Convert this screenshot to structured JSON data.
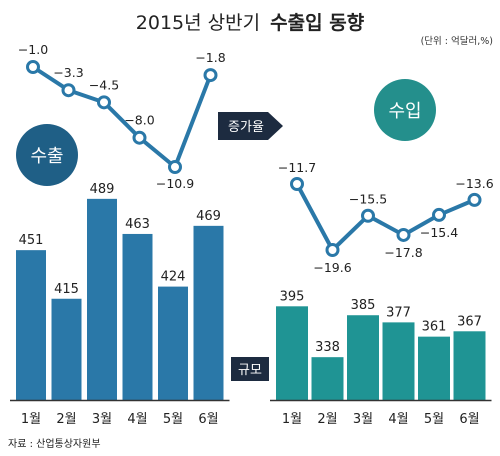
{
  "header": {
    "title_prefix": "2015년 상반기",
    "title_bold": "수출입 동향",
    "unit": "(단위 : 억달러,%)"
  },
  "labels": {
    "export_badge": "수출",
    "import_badge": "수입",
    "growth_tag": "증가율",
    "scale_tag": "규모",
    "source": "자료 : 산업통상자원부"
  },
  "colors": {
    "export_dark": "#1f5f86",
    "export_bar": "#2a78a8",
    "import_bar": "#1f9494",
    "import_badge": "#248f8c",
    "line": "#2a78a8",
    "tag_bg": "#1d2b40",
    "axis": "#333333"
  },
  "chart_data": [
    {
      "type": "bar",
      "name": "수출 규모",
      "categories": [
        "1월",
        "2월",
        "3월",
        "4월",
        "5월",
        "6월"
      ],
      "values": [
        451,
        415,
        489,
        463,
        424,
        469
      ],
      "ylim": [
        340,
        500
      ]
    },
    {
      "type": "line",
      "name": "수출 증가율",
      "categories": [
        "1월",
        "2월",
        "3월",
        "4월",
        "5월",
        "6월"
      ],
      "values": [
        -1.0,
        -3.3,
        -4.5,
        -8.0,
        -10.9,
        -1.8
      ],
      "value_labels": [
        "−1.0",
        "−3.3",
        "−4.5",
        "−8.0",
        "−10.9",
        "−1.8"
      ]
    },
    {
      "type": "bar",
      "name": "수입 규모",
      "categories": [
        "1월",
        "2월",
        "3월",
        "4월",
        "5월",
        "6월"
      ],
      "values": [
        395,
        338,
        385,
        377,
        361,
        367
      ],
      "ylim": [
        290,
        420
      ]
    },
    {
      "type": "line",
      "name": "수입 증가율",
      "categories": [
        "1월",
        "2월",
        "3월",
        "4월",
        "5월",
        "6월"
      ],
      "values": [
        -11.7,
        -19.6,
        -15.5,
        -17.8,
        -15.4,
        -13.6
      ],
      "value_labels": [
        "−11.7",
        "−19.6",
        "−15.5",
        "−17.8",
        "−15.4",
        "−13.6"
      ]
    }
  ]
}
